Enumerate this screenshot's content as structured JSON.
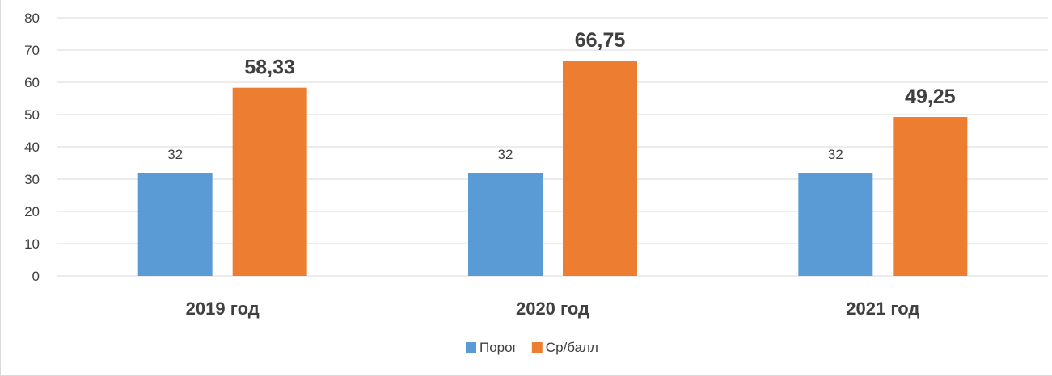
{
  "chart_data": {
    "type": "bar",
    "categories": [
      "2019 год",
      "2020 год",
      "2021 год"
    ],
    "series": [
      {
        "name": "Порог",
        "values": [
          32,
          32,
          32
        ],
        "labels": [
          "32",
          "32",
          "32"
        ],
        "color": "#5b9bd5"
      },
      {
        "name": "Ср/балл",
        "values": [
          58.33,
          66.75,
          49.25
        ],
        "labels": [
          "58,33",
          "66,75",
          "49,25"
        ],
        "color": "#ed7d31"
      }
    ],
    "ylim": [
      0,
      80
    ],
    "yticks": [
      0,
      10,
      20,
      30,
      40,
      50,
      60,
      70,
      80
    ],
    "grid": true,
    "legend_position": "bottom",
    "gridline_color": "#d9d9d9",
    "text_color": "#404040"
  }
}
